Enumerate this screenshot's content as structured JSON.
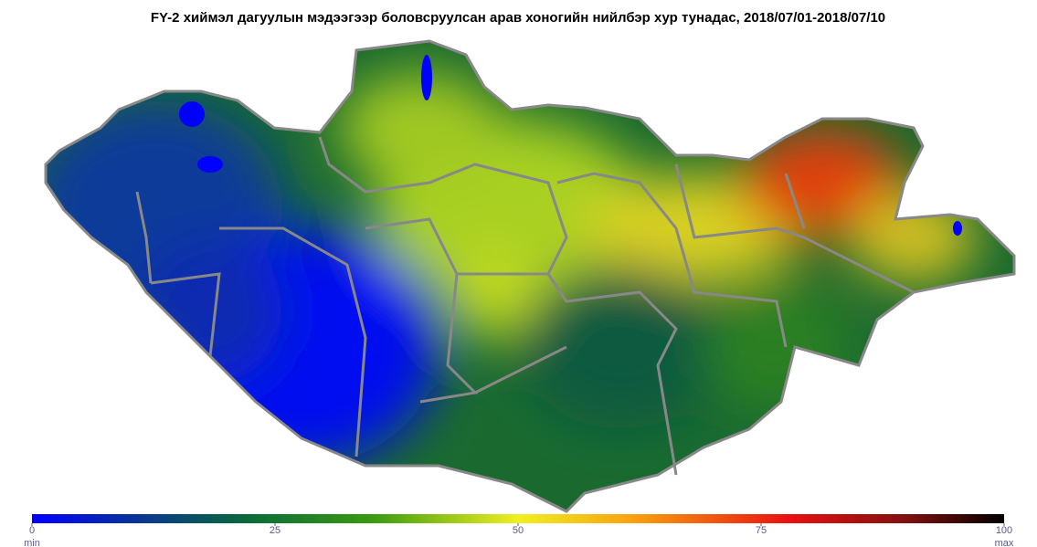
{
  "title": "FY-2 хиймэл дагуулын мэдээгээр боловсруулсан арав хоногийн нийлбэр хур тунадас, 2018/07/01-2018/07/10",
  "colorbar": {
    "lim": [
      0,
      100
    ],
    "ticks": [
      0,
      25,
      50,
      75,
      100
    ],
    "end_labels": [
      "min",
      "max"
    ]
  }
}
